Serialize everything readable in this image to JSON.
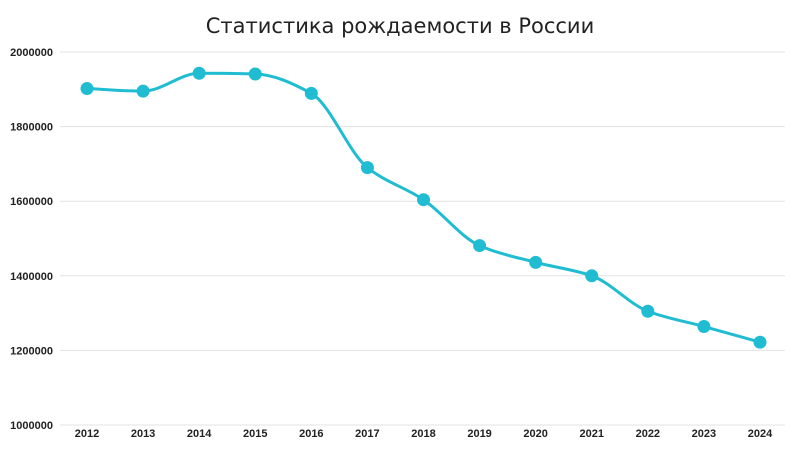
{
  "chart_data": {
    "type": "line",
    "title": "Статистика рождаемости в России",
    "xlabel": "",
    "ylabel": "",
    "categories": [
      "2012",
      "2013",
      "2014",
      "2015",
      "2016",
      "2017",
      "2018",
      "2019",
      "2020",
      "2021",
      "2022",
      "2023",
      "2024"
    ],
    "series": [
      {
        "values": [
          1902000,
          1895000,
          1943000,
          1941000,
          1889000,
          1690000,
          1604000,
          1481000,
          1436000,
          1400000,
          1305000,
          1264000,
          1222000
        ],
        "color": "#1fbcd2"
      }
    ],
    "ylim": [
      1000000,
      2000000
    ],
    "yticks": [
      "1000000",
      "1200000",
      "1400000",
      "1600000",
      "1800000",
      "2000000"
    ],
    "ytick_values": [
      1000000,
      1200000,
      1400000,
      1600000,
      1800000,
      2000000
    ],
    "grid": true,
    "smooth": true,
    "gridline_color": "#e3e3e3"
  }
}
